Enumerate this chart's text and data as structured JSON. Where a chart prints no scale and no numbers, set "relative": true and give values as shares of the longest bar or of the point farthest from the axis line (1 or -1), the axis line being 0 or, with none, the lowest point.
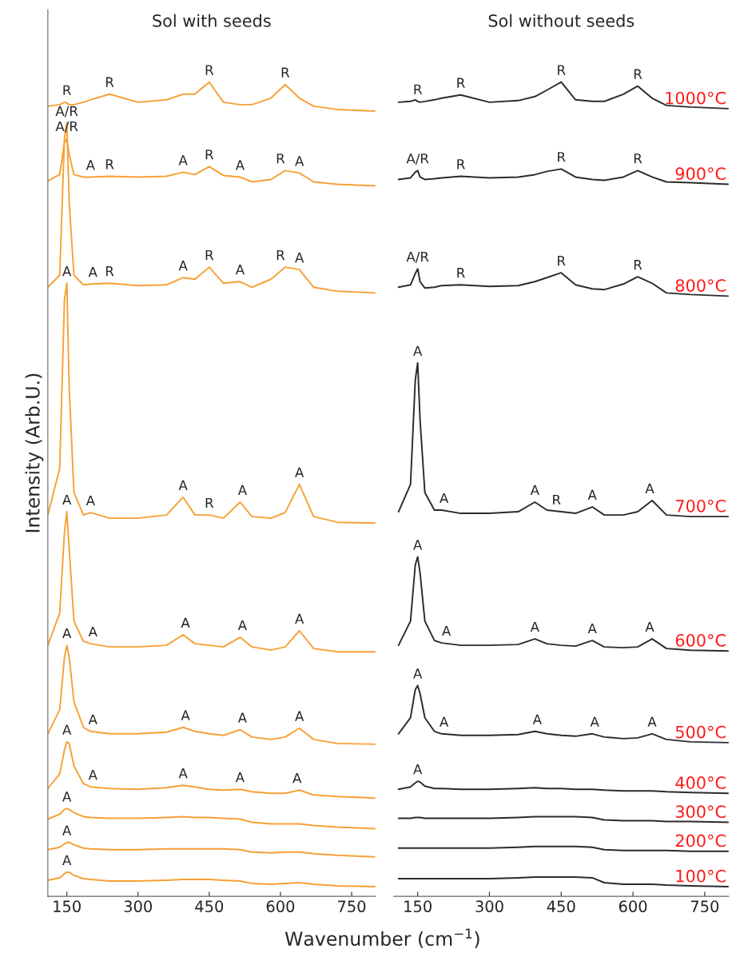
{
  "chart_data": [
    {
      "type": "line",
      "title": "Sol with seeds",
      "xlabel": "Wavenumber (cm$^{−1}$)",
      "ylabel": "Intensity (Arb.U.)",
      "relative": true,
      "tick_labels": "x",
      "grid": false,
      "legend": false,
      "marker": "none",
      "line_style": "solid",
      "xlim": [
        110,
        800
      ],
      "xticks": [
        150,
        300,
        450,
        600,
        750
      ],
      "x": [
        110,
        135,
        145,
        150,
        155,
        165,
        185,
        200,
        240,
        300,
        360,
        395,
        420,
        450,
        480,
        515,
        540,
        580,
        610,
        640,
        670,
        720,
        800
      ],
      "series": [
        {
          "color": "#f7a035",
          "values": [
            0.97,
            0.972,
            0.975,
            0.974,
            0.972,
            0.972,
            0.975,
            0.978,
            0.985,
            0.975,
            0.978,
            0.985,
            0.985,
            1.0,
            0.975,
            0.972,
            0.972,
            0.98,
            0.997,
            0.98,
            0.97,
            0.966,
            0.964
          ]
        },
        {
          "color": "#f7a035",
          "values": [
            0.877,
            0.885,
            0.925,
            0.93,
            0.91,
            0.885,
            0.882,
            0.882,
            0.883,
            0.882,
            0.883,
            0.888,
            0.885,
            0.895,
            0.884,
            0.882,
            0.876,
            0.879,
            0.89,
            0.887,
            0.876,
            0.873,
            0.871
          ]
        },
        {
          "color": "#f7a035",
          "values": [
            0.745,
            0.76,
            0.93,
            0.949,
            0.85,
            0.76,
            0.748,
            0.749,
            0.75,
            0.747,
            0.748,
            0.757,
            0.755,
            0.77,
            0.75,
            0.752,
            0.745,
            0.755,
            0.77,
            0.767,
            0.745,
            0.74,
            0.738
          ]
        },
        {
          "color": "#f7a035",
          "values": [
            0.462,
            0.52,
            0.73,
            0.75,
            0.62,
            0.49,
            0.462,
            0.465,
            0.458,
            0.458,
            0.462,
            0.484,
            0.462,
            0.462,
            0.458,
            0.478,
            0.46,
            0.458,
            0.465,
            0.5,
            0.46,
            0.453,
            0.452
          ]
        },
        {
          "color": "#f7a035",
          "values": [
            0.3,
            0.34,
            0.44,
            0.466,
            0.42,
            0.33,
            0.305,
            0.302,
            0.298,
            0.298,
            0.3,
            0.313,
            0.302,
            0.3,
            0.298,
            0.31,
            0.298,
            0.294,
            0.298,
            0.318,
            0.296,
            0.292,
            0.292
          ]
        },
        {
          "color": "#f7a035",
          "values": [
            0.19,
            0.22,
            0.285,
            0.3,
            0.285,
            0.23,
            0.198,
            0.193,
            0.19,
            0.19,
            0.192,
            0.198,
            0.193,
            0.19,
            0.188,
            0.195,
            0.186,
            0.183,
            0.186,
            0.197,
            0.183,
            0.178,
            0.177
          ]
        },
        {
          "color": "#f7a035",
          "values": [
            0.122,
            0.14,
            0.17,
            0.18,
            0.178,
            0.15,
            0.128,
            0.124,
            0.122,
            0.121,
            0.123,
            0.126,
            0.124,
            0.121,
            0.12,
            0.121,
            0.118,
            0.116,
            0.116,
            0.12,
            0.114,
            0.112,
            0.11
          ]
        },
        {
          "color": "#f7a035",
          "values": [
            0.084,
            0.09,
            0.096,
            0.097,
            0.096,
            0.092,
            0.087,
            0.086,
            0.085,
            0.085,
            0.086,
            0.087,
            0.086,
            0.086,
            0.085,
            0.084,
            0.08,
            0.078,
            0.078,
            0.078,
            0.076,
            0.074,
            0.072
          ]
        },
        {
          "color": "#f7a035",
          "values": [
            0.046,
            0.049,
            0.053,
            0.055,
            0.055,
            0.052,
            0.048,
            0.047,
            0.046,
            0.046,
            0.047,
            0.047,
            0.047,
            0.047,
            0.047,
            0.046,
            0.043,
            0.042,
            0.043,
            0.043,
            0.041,
            0.039,
            0.037
          ]
        },
        {
          "color": "#f7a035",
          "values": [
            0.008,
            0.011,
            0.016,
            0.018,
            0.018,
            0.014,
            0.01,
            0.009,
            0.007,
            0.007,
            0.008,
            0.009,
            0.009,
            0.009,
            0.008,
            0.007,
            0.004,
            0.003,
            0.004,
            0.005,
            0.003,
            0.001,
            0.0
          ]
        }
      ],
      "annotations": [
        {
          "text": "R",
          "x": 150,
          "y": 0.975
        },
        {
          "text": "R",
          "x": 240,
          "y": 0.985
        },
        {
          "text": "R",
          "x": 450,
          "y": 1.0
        },
        {
          "text": "R",
          "x": 610,
          "y": 0.997
        },
        {
          "text": "A/R",
          "x": 150,
          "y": 0.93
        },
        {
          "text": "A",
          "x": 200,
          "y": 0.882
        },
        {
          "text": "R",
          "x": 240,
          "y": 0.883
        },
        {
          "text": "A",
          "x": 395,
          "y": 0.888
        },
        {
          "text": "R",
          "x": 450,
          "y": 0.895
        },
        {
          "text": "A",
          "x": 515,
          "y": 0.882
        },
        {
          "text": "R",
          "x": 600,
          "y": 0.89
        },
        {
          "text": "A",
          "x": 640,
          "y": 0.887
        },
        {
          "text": "A/R",
          "x": 150,
          "y": 0.949
        },
        {
          "text": "A",
          "x": 205,
          "y": 0.749
        },
        {
          "text": "R",
          "x": 240,
          "y": 0.75
        },
        {
          "text": "A",
          "x": 395,
          "y": 0.757
        },
        {
          "text": "R",
          "x": 450,
          "y": 0.77
        },
        {
          "text": "A",
          "x": 515,
          "y": 0.752
        },
        {
          "text": "R",
          "x": 600,
          "y": 0.77
        },
        {
          "text": "A",
          "x": 640,
          "y": 0.767
        },
        {
          "text": "A",
          "x": 150,
          "y": 0.75
        },
        {
          "text": "A",
          "x": 200,
          "y": 0.465
        },
        {
          "text": "A",
          "x": 395,
          "y": 0.484
        },
        {
          "text": "R",
          "x": 450,
          "y": 0.462
        },
        {
          "text": "A",
          "x": 520,
          "y": 0.478
        },
        {
          "text": "A",
          "x": 640,
          "y": 0.5
        },
        {
          "text": "A",
          "x": 150,
          "y": 0.466
        },
        {
          "text": "A",
          "x": 205,
          "y": 0.302
        },
        {
          "text": "A",
          "x": 400,
          "y": 0.313
        },
        {
          "text": "A",
          "x": 520,
          "y": 0.31
        },
        {
          "text": "A",
          "x": 640,
          "y": 0.318
        },
        {
          "text": "A",
          "x": 150,
          "y": 0.3
        },
        {
          "text": "A",
          "x": 205,
          "y": 0.193
        },
        {
          "text": "A",
          "x": 400,
          "y": 0.198
        },
        {
          "text": "A",
          "x": 520,
          "y": 0.195
        },
        {
          "text": "A",
          "x": 640,
          "y": 0.197
        },
        {
          "text": "A",
          "x": 150,
          "y": 0.18
        },
        {
          "text": "A",
          "x": 205,
          "y": 0.124
        },
        {
          "text": "A",
          "x": 395,
          "y": 0.126
        },
        {
          "text": "A",
          "x": 515,
          "y": 0.121
        },
        {
          "text": "A",
          "x": 635,
          "y": 0.12
        },
        {
          "text": "A",
          "x": 150,
          "y": 0.097
        },
        {
          "text": "A",
          "x": 150,
          "y": 0.055
        },
        {
          "text": "A",
          "x": 150,
          "y": 0.018
        }
      ]
    },
    {
      "type": "line",
      "title": "Sol without seeds",
      "relative": true,
      "tick_labels": "x",
      "grid": false,
      "legend": false,
      "marker": "none",
      "line_style": "solid",
      "xlim": [
        100,
        800
      ],
      "xticks": [
        150,
        300,
        450,
        600,
        750
      ],
      "x": [
        110,
        135,
        145,
        150,
        155,
        165,
        185,
        200,
        240,
        300,
        360,
        395,
        420,
        450,
        480,
        515,
        540,
        580,
        610,
        640,
        670,
        720,
        800
      ],
      "series": [
        {
          "name": "1000°C",
          "color": "#2b2b2b",
          "values": [
            0.975,
            0.976,
            0.978,
            0.976,
            0.975,
            0.976,
            0.978,
            0.98,
            0.984,
            0.975,
            0.977,
            0.982,
            0.99,
            1.0,
            0.978,
            0.976,
            0.976,
            0.985,
            0.995,
            0.98,
            0.971,
            0.969,
            0.967
          ]
        },
        {
          "name": "900°C",
          "color": "#2b2b2b",
          "values": [
            0.879,
            0.881,
            0.888,
            0.89,
            0.882,
            0.879,
            0.88,
            0.881,
            0.883,
            0.881,
            0.882,
            0.885,
            0.889,
            0.892,
            0.882,
            0.879,
            0.878,
            0.882,
            0.89,
            0.882,
            0.876,
            0.875,
            0.873
          ]
        },
        {
          "name": "800°C",
          "color": "#2b2b2b",
          "values": [
            0.745,
            0.748,
            0.762,
            0.768,
            0.752,
            0.744,
            0.745,
            0.747,
            0.748,
            0.746,
            0.747,
            0.752,
            0.757,
            0.763,
            0.748,
            0.743,
            0.742,
            0.749,
            0.758,
            0.75,
            0.738,
            0.736,
            0.734
          ]
        },
        {
          "name": "700°C",
          "color": "#2b2b2b",
          "values": [
            0.466,
            0.5,
            0.63,
            0.651,
            0.58,
            0.49,
            0.468,
            0.468,
            0.464,
            0.464,
            0.466,
            0.478,
            0.468,
            0.466,
            0.464,
            0.472,
            0.462,
            0.462,
            0.466,
            0.48,
            0.462,
            0.46,
            0.46
          ]
        },
        {
          "name": "600°C",
          "color": "#2b2b2b",
          "values": [
            0.3,
            0.33,
            0.4,
            0.41,
            0.39,
            0.33,
            0.306,
            0.303,
            0.3,
            0.3,
            0.301,
            0.308,
            0.302,
            0.3,
            0.299,
            0.306,
            0.298,
            0.297,
            0.298,
            0.308,
            0.296,
            0.294,
            0.293
          ]
        },
        {
          "name": "500°C",
          "color": "#2b2b2b",
          "values": [
            0.19,
            0.21,
            0.245,
            0.25,
            0.24,
            0.21,
            0.193,
            0.19,
            0.188,
            0.188,
            0.189,
            0.193,
            0.19,
            0.188,
            0.187,
            0.19,
            0.186,
            0.184,
            0.185,
            0.19,
            0.183,
            0.18,
            0.179
          ]
        },
        {
          "name": "400°C",
          "color": "#2b2b2b",
          "values": [
            0.121,
            0.124,
            0.129,
            0.131,
            0.13,
            0.125,
            0.122,
            0.122,
            0.121,
            0.121,
            0.122,
            0.123,
            0.122,
            0.122,
            0.121,
            0.121,
            0.12,
            0.119,
            0.119,
            0.119,
            0.118,
            0.117,
            0.116
          ]
        },
        {
          "name": "300°C",
          "color": "#2b2b2b",
          "values": [
            0.085,
            0.085,
            0.086,
            0.086,
            0.086,
            0.085,
            0.085,
            0.085,
            0.085,
            0.085,
            0.086,
            0.087,
            0.087,
            0.087,
            0.087,
            0.086,
            0.083,
            0.082,
            0.082,
            0.082,
            0.081,
            0.081,
            0.08
          ]
        },
        {
          "name": "200°C",
          "color": "#2b2b2b",
          "values": [
            0.048,
            0.048,
            0.048,
            0.048,
            0.048,
            0.048,
            0.048,
            0.048,
            0.048,
            0.048,
            0.049,
            0.05,
            0.05,
            0.05,
            0.05,
            0.049,
            0.046,
            0.045,
            0.045,
            0.045,
            0.045,
            0.044,
            0.044
          ]
        },
        {
          "name": "100°C",
          "color": "#2b2b2b",
          "values": [
            0.01,
            0.01,
            0.01,
            0.01,
            0.01,
            0.01,
            0.01,
            0.01,
            0.01,
            0.01,
            0.011,
            0.012,
            0.012,
            0.012,
            0.012,
            0.011,
            0.005,
            0.003,
            0.003,
            0.003,
            0.002,
            0.001,
            0.0
          ]
        }
      ],
      "annotations": [
        {
          "text": "R",
          "x": 150,
          "y": 0.976
        },
        {
          "text": "R",
          "x": 240,
          "y": 0.984
        },
        {
          "text": "R",
          "x": 450,
          "y": 1.0
        },
        {
          "text": "R",
          "x": 610,
          "y": 0.995
        },
        {
          "text": "A/R",
          "x": 150,
          "y": 0.89
        },
        {
          "text": "R",
          "x": 240,
          "y": 0.883
        },
        {
          "text": "R",
          "x": 450,
          "y": 0.892
        },
        {
          "text": "R",
          "x": 610,
          "y": 0.89
        },
        {
          "text": "A/R",
          "x": 150,
          "y": 0.768
        },
        {
          "text": "R",
          "x": 240,
          "y": 0.748
        },
        {
          "text": "R",
          "x": 450,
          "y": 0.763
        },
        {
          "text": "R",
          "x": 610,
          "y": 0.758
        },
        {
          "text": "A",
          "x": 150,
          "y": 0.651
        },
        {
          "text": "A",
          "x": 205,
          "y": 0.468
        },
        {
          "text": "A",
          "x": 395,
          "y": 0.478
        },
        {
          "text": "R",
          "x": 440,
          "y": 0.466
        },
        {
          "text": "A",
          "x": 515,
          "y": 0.472
        },
        {
          "text": "A",
          "x": 635,
          "y": 0.48
        },
        {
          "text": "A",
          "x": 150,
          "y": 0.41
        },
        {
          "text": "A",
          "x": 210,
          "y": 0.303
        },
        {
          "text": "A",
          "x": 395,
          "y": 0.308
        },
        {
          "text": "A",
          "x": 515,
          "y": 0.306
        },
        {
          "text": "A",
          "x": 635,
          "y": 0.308
        },
        {
          "text": "A",
          "x": 150,
          "y": 0.25
        },
        {
          "text": "A",
          "x": 205,
          "y": 0.19
        },
        {
          "text": "A",
          "x": 400,
          "y": 0.193
        },
        {
          "text": "A",
          "x": 520,
          "y": 0.19
        },
        {
          "text": "A",
          "x": 640,
          "y": 0.19
        },
        {
          "text": "A",
          "x": 150,
          "y": 0.131
        }
      ]
    }
  ]
}
